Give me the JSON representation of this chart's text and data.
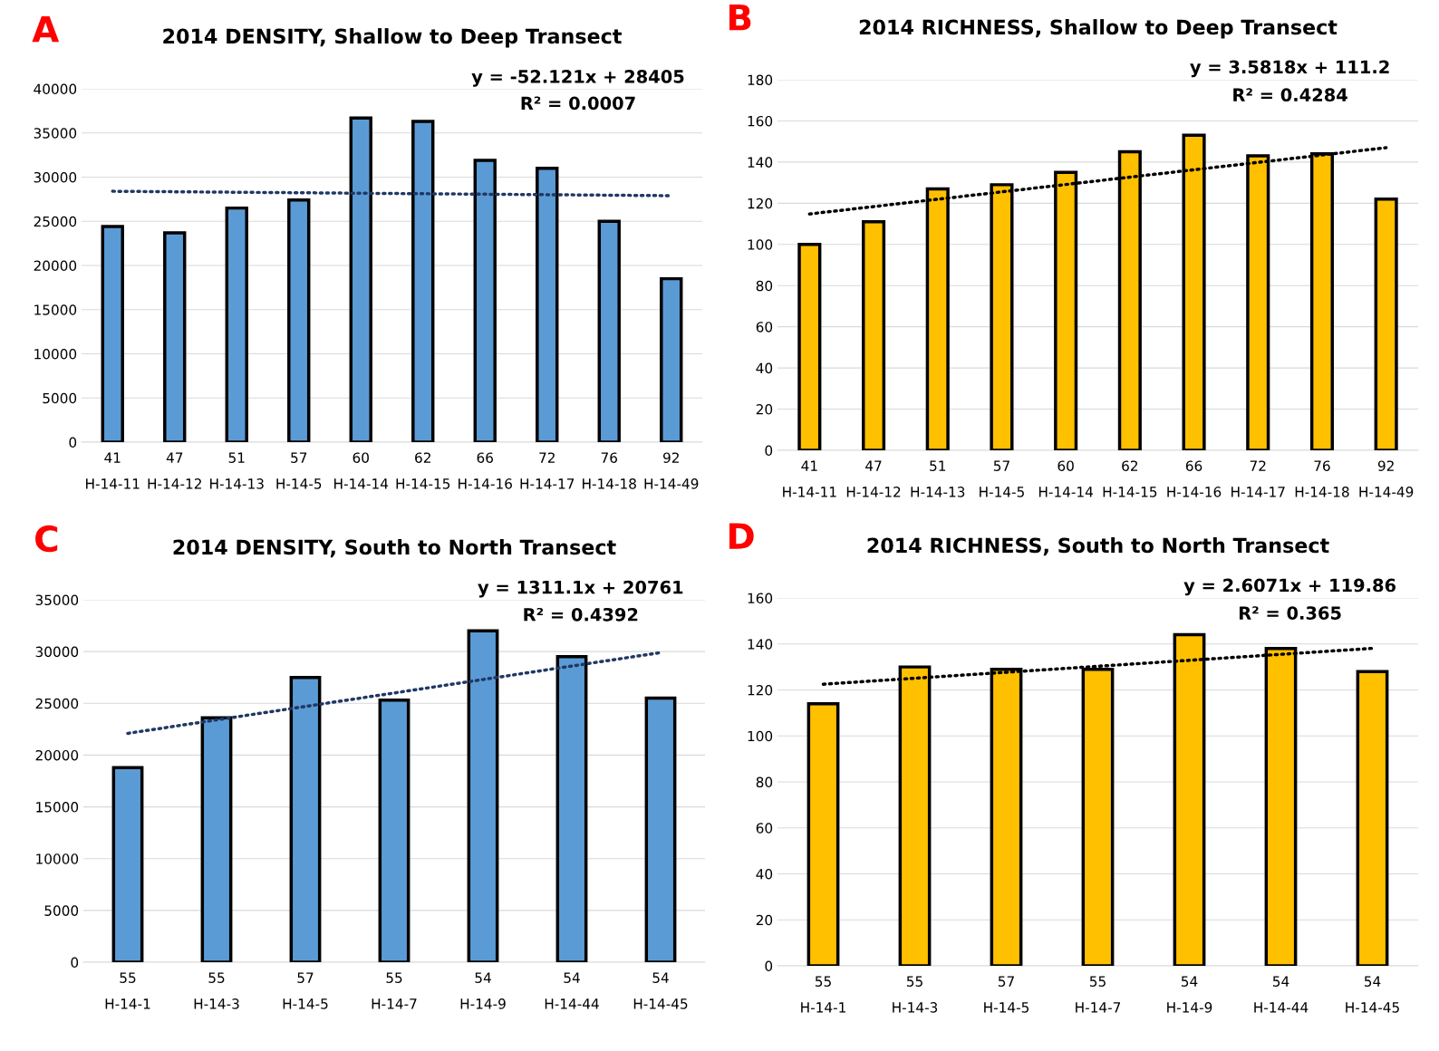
{
  "chart_data": [
    {
      "type": "bar",
      "title": "2014 DENSITY, Shallow to Deep Transect",
      "categories": [
        "41\nH-14-11",
        "47\nH-14-12",
        "51\nH-14-13",
        "57\nH-14-5",
        "60\nH-14-14",
        "62\nH-14-15",
        "66\nH-14-16",
        "72\nH-14-17",
        "76\nH-14-18",
        "92\nH-14-49"
      ],
      "series": [
        {
          "color": "#5b9bd5",
          "values": [
            24400,
            23700,
            26500,
            27400,
            36700,
            36300,
            31900,
            31000,
            25000,
            18500
          ]
        },
        {
          "type": "line",
          "color": "#203864",
          "line_style": "dotted",
          "values": [
            28400,
            null,
            null,
            null,
            null,
            null,
            null,
            null,
            null,
            27900
          ]
        }
      ],
      "ylim": [
        0,
        40000
      ],
      "yticks": [
        0,
        5000,
        10000,
        15000,
        20000,
        25000,
        30000,
        35000,
        40000
      ],
      "grid": "y",
      "annotations": [
        "A",
        "y = -52.121x + 28405",
        "R² = 0.0007"
      ]
    },
    {
      "type": "bar",
      "title": "2014 RICHNESS, Shallow to Deep Transect",
      "categories": [
        "41\nH-14-11",
        "47\nH-14-12",
        "51\nH-14-13",
        "57\nH-14-5",
        "60\nH-14-14",
        "62\nH-14-15",
        "66\nH-14-16",
        "72\nH-14-17",
        "76\nH-14-18",
        "92\nH-14-49"
      ],
      "series": [
        {
          "color": "#ffc000",
          "values": [
            100,
            111,
            127,
            129,
            135,
            145,
            153,
            143,
            144,
            122
          ]
        },
        {
          "type": "line",
          "color": "#000000",
          "line_style": "dotted",
          "values": [
            114.8,
            null,
            null,
            null,
            null,
            null,
            null,
            null,
            null,
            147.0
          ]
        }
      ],
      "ylim": [
        0,
        180
      ],
      "yticks": [
        0,
        20,
        40,
        60,
        80,
        100,
        120,
        140,
        160,
        180
      ],
      "grid": "y",
      "annotations": [
        "B",
        "y = 3.5818x + 111.2",
        "R² = 0.4284"
      ]
    },
    {
      "type": "bar",
      "title": "2014 DENSITY, South to North Transect",
      "categories": [
        "55\nH-14-1",
        "55\nH-14-3",
        "57\nH-14-5",
        "55\nH-14-7",
        "54\nH-14-9",
        "54\nH-14-44",
        "54\nH-14-45"
      ],
      "series": [
        {
          "color": "#5b9bd5",
          "values": [
            18800,
            23600,
            27500,
            25300,
            32000,
            29500,
            25500
          ]
        },
        {
          "type": "line",
          "color": "#203864",
          "line_style": "dotted",
          "values": [
            22100,
            null,
            null,
            null,
            null,
            null,
            29900
          ]
        }
      ],
      "ylim": [
        0,
        35000
      ],
      "yticks": [
        0,
        5000,
        10000,
        15000,
        20000,
        25000,
        30000,
        35000
      ],
      "grid": "y",
      "annotations": [
        "C",
        "y = 1311.1x + 20761",
        "R² = 0.4392"
      ]
    },
    {
      "type": "bar",
      "title": "2014 RICHNESS, South to North Transect",
      "categories": [
        "55\nH-14-1",
        "55\nH-14-3",
        "57\nH-14-5",
        "55\nH-14-7",
        "54\nH-14-9",
        "54\nH-14-44",
        "54\nH-14-45"
      ],
      "series": [
        {
          "color": "#ffc000",
          "values": [
            114,
            130,
            129,
            129,
            144,
            138,
            128
          ]
        },
        {
          "type": "line",
          "color": "#000000",
          "line_style": "dotted",
          "values": [
            122.5,
            null,
            null,
            null,
            null,
            null,
            138.1
          ]
        }
      ],
      "ylim": [
        0,
        160
      ],
      "yticks": [
        0,
        20,
        40,
        60,
        80,
        100,
        120,
        140,
        160
      ],
      "grid": "y",
      "annotations": [
        "D",
        "y = 2.6071x + 119.86",
        "R² = 0.365"
      ]
    }
  ]
}
